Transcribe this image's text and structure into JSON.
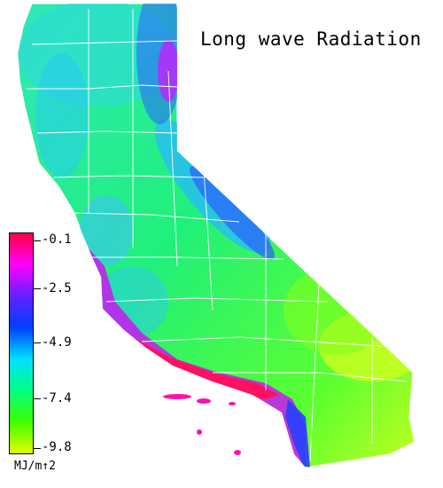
{
  "title": "Long wave Radiation",
  "legend": {
    "colors": [
      "#ff0040",
      "#ff00ff",
      "#6020ff",
      "#0040ff",
      "#00e0ff",
      "#00ff80",
      "#40ff00",
      "#e0ff00"
    ],
    "ticks": [
      "-0.1",
      "-2.5",
      "-4.9",
      "-7.4",
      "-9.8"
    ],
    "unit": "MJ/m↑2"
  },
  "map": {
    "region": "California counties",
    "palette": {
      "inland": "#18f070",
      "north": "#28e8a8",
      "mountain": "#28c8ff",
      "high": "#3060ff",
      "desert": "#90ff20",
      "coast_warm": "#ff10a0",
      "coast_magenta": "#d010f0",
      "outline": "#ffffff"
    }
  }
}
